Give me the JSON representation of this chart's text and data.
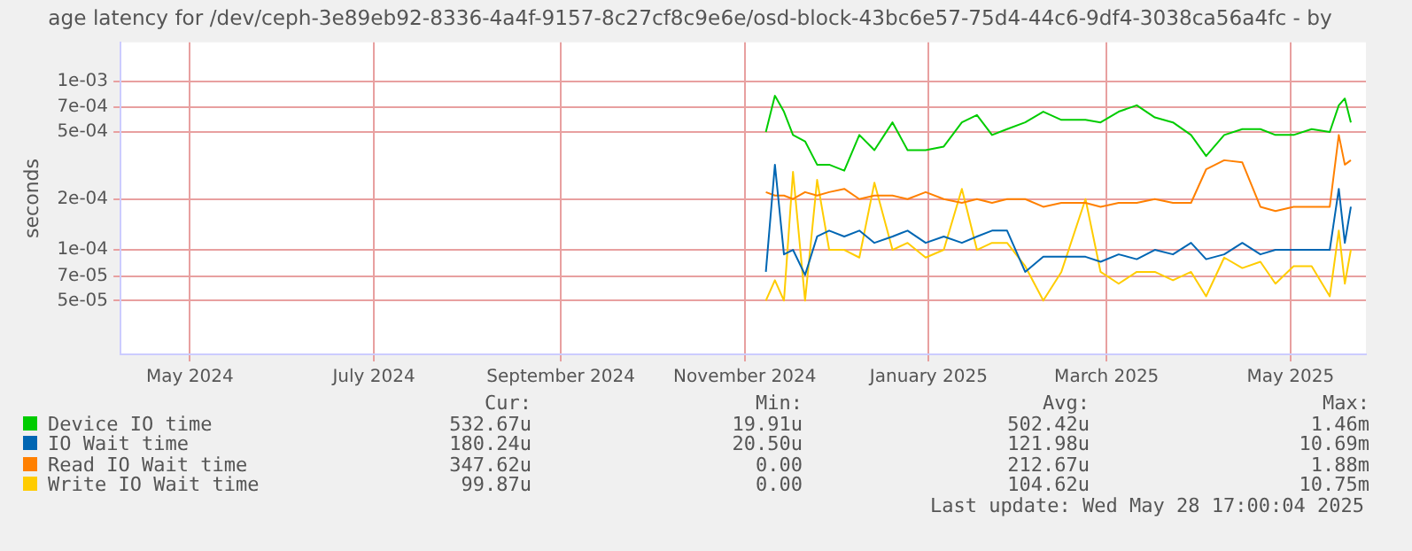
{
  "chart_data": {
    "type": "line",
    "title": "age latency for /dev/ceph-3e89eb92-8336-4a4f-9157-8c27cf8c9e6e/osd-block-43bc6e57-75d4-44c6-9df4-3038ca56a4fc - by",
    "ylabel": "seconds",
    "log": true,
    "grid": true,
    "legend": "bottom",
    "marker": "none",
    "line_style": "solid",
    "x": [
      "2024-11-08",
      "2024-11-11",
      "2024-11-14",
      "2024-11-17",
      "2024-11-21",
      "2024-11-25",
      "2024-11-29",
      "2024-12-04",
      "2024-12-09",
      "2024-12-14",
      "2024-12-20",
      "2024-12-25",
      "2024-12-31",
      "2025-01-06",
      "2025-01-12",
      "2025-01-17",
      "2025-01-22",
      "2025-01-27",
      "2025-02-02",
      "2025-02-08",
      "2025-02-14",
      "2025-02-22",
      "2025-02-27",
      "2025-03-05",
      "2025-03-11",
      "2025-03-17",
      "2025-03-23",
      "2025-03-29",
      "2025-04-03",
      "2025-04-09",
      "2025-04-15",
      "2025-04-21",
      "2025-04-26",
      "2025-05-02",
      "2025-05-08",
      "2025-05-14",
      "2025-05-17",
      "2025-05-19",
      "2025-05-21"
    ],
    "xlim": [
      "2024-04-08",
      "2025-05-26"
    ],
    "xticks": [
      {
        "value": "2024-05-01",
        "label": "May 2024"
      },
      {
        "value": "2024-07-01",
        "label": "July 2024"
      },
      {
        "value": "2024-09-01",
        "label": "September 2024"
      },
      {
        "value": "2024-11-01",
        "label": "November 2024"
      },
      {
        "value": "2025-01-01",
        "label": "January 2025"
      },
      {
        "value": "2025-03-01",
        "label": "March 2025"
      },
      {
        "value": "2025-05-01",
        "label": "May 2025"
      }
    ],
    "ylim": [
      2.4e-05,
      0.0017
    ],
    "yticks": [
      {
        "value": 5e-05,
        "label": "5e-05"
      },
      {
        "value": 7e-05,
        "label": "7e-05"
      },
      {
        "value": 0.0001,
        "label": "1e-04"
      },
      {
        "value": 0.0002,
        "label": "2e-04"
      },
      {
        "value": 0.0005,
        "label": "5e-04"
      },
      {
        "value": 0.0007,
        "label": "7e-04"
      },
      {
        "value": 0.001,
        "label": "1e-03"
      }
    ],
    "series": [
      {
        "name": "Device IO time",
        "color": "#00cc00",
        "values": [
          0.0005,
          0.00082,
          0.00066,
          0.00048,
          0.00044,
          0.00032,
          0.00032,
          0.000295,
          0.00048,
          0.00039,
          0.00057,
          0.00039,
          0.00039,
          0.00041,
          0.00057,
          0.00063,
          0.00048,
          0.00052,
          0.00057,
          0.00066,
          0.00059,
          0.00059,
          0.00057,
          0.00066,
          0.00072,
          0.00061,
          0.00057,
          0.00048,
          0.00036,
          0.00048,
          0.00052,
          0.00052,
          0.00048,
          0.00048,
          0.00052,
          0.0005,
          0.00072,
          0.00079,
          0.00057
        ]
      },
      {
        "name": "IO Wait time",
        "color": "#0066b3",
        "values": [
          7.4e-05,
          0.00032,
          9.4e-05,
          0.0001,
          7.1e-05,
          0.00012,
          0.00013,
          0.00012,
          0.00013,
          0.00011,
          0.00012,
          0.00013,
          0.00011,
          0.00012,
          0.00011,
          0.00012,
          0.00013,
          0.00013,
          7.4e-05,
          9.1e-05,
          9.1e-05,
          9.1e-05,
          8.5e-05,
          9.4e-05,
          8.8e-05,
          0.0001,
          9.4e-05,
          0.00011,
          8.8e-05,
          9.4e-05,
          0.00011,
          9.4e-05,
          0.0001,
          0.0001,
          0.0001,
          0.0001,
          0.00023,
          0.00011,
          0.00018
        ]
      },
      {
        "name": "Read IO Wait time",
        "color": "#ff8000",
        "values": [
          0.00022,
          0.00021,
          0.00021,
          0.0002,
          0.00022,
          0.00021,
          0.00022,
          0.00023,
          0.0002,
          0.00021,
          0.00021,
          0.0002,
          0.00022,
          0.0002,
          0.00019,
          0.0002,
          0.00019,
          0.0002,
          0.0002,
          0.00018,
          0.00019,
          0.00019,
          0.00018,
          0.00019,
          0.00019,
          0.0002,
          0.00019,
          0.00019,
          0.0003,
          0.00034,
          0.00033,
          0.00018,
          0.00017,
          0.00018,
          0.00018,
          0.00018,
          0.00048,
          0.00032,
          0.00034
        ]
      },
      {
        "name": "Write IO Wait time",
        "color": "#ffcc00",
        "values": [
          5e-05,
          6.6e-05,
          5e-05,
          0.00029,
          5e-05,
          0.00026,
          0.0001,
          0.0001,
          9e-05,
          0.00025,
          0.0001,
          0.00011,
          9e-05,
          0.0001,
          0.00023,
          0.0001,
          0.00011,
          0.00011,
          8e-05,
          5e-05,
          7.4e-05,
          0.0002,
          7.4e-05,
          6.3e-05,
          7.4e-05,
          7.4e-05,
          6.6e-05,
          7.4e-05,
          5.3e-05,
          9e-05,
          7.8e-05,
          8.5e-05,
          6.3e-05,
          8e-05,
          8e-05,
          5.3e-05,
          0.00013,
          6.3e-05,
          0.0001
        ]
      }
    ],
    "annotations": [
      "Cur:",
      "Min:",
      "Avg:",
      "Max:",
      "532.67u",
      "19.91u",
      "502.42u",
      "1.46m",
      "180.24u",
      "20.50u",
      "121.98u",
      "10.69m",
      "347.62u",
      "0.00",
      "212.67u",
      "1.88m",
      "99.87u",
      "0.00",
      "104.62u",
      "10.75m",
      "Last update: Wed May 28 17:00:04 2025"
    ]
  }
}
